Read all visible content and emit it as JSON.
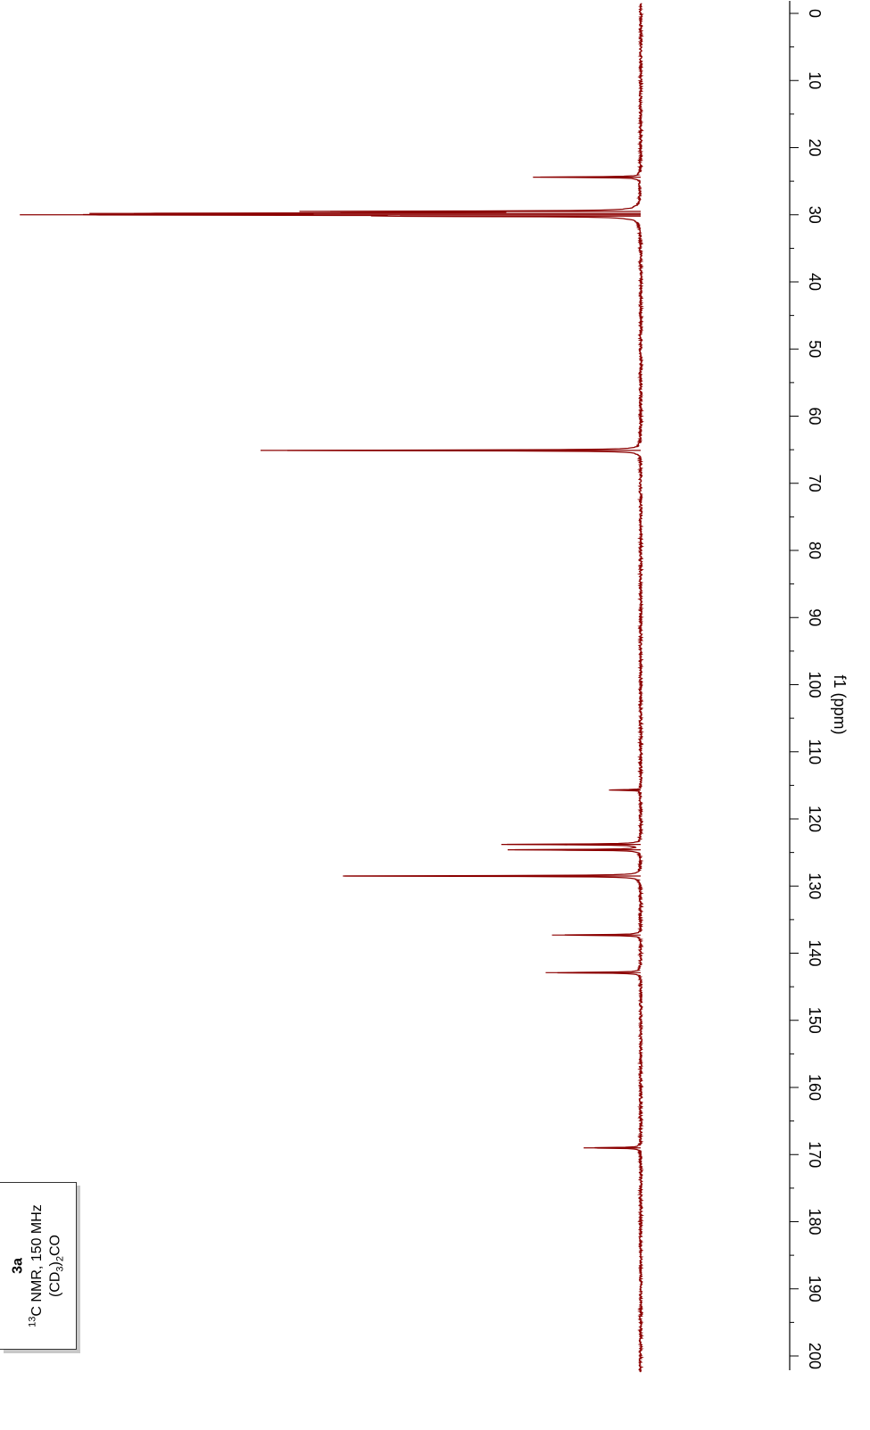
{
  "chart_data": {
    "type": "line",
    "orientation": "rotated-90",
    "xlabel": "f1 (ppm)",
    "xlim": [
      0,
      200
    ],
    "xticks": [
      0,
      10,
      20,
      30,
      40,
      50,
      60,
      70,
      80,
      90,
      100,
      110,
      120,
      130,
      140,
      150,
      160,
      170,
      180,
      190,
      200
    ],
    "minor_tick_step": 5,
    "line_color": "#8b0000",
    "baseline_intensity": 0,
    "ylim": [
      0,
      1
    ],
    "peaks": [
      {
        "ppm": 24.4,
        "intensity": 0.17
      },
      {
        "ppm": 29.5,
        "intensity": 0.49
      },
      {
        "ppm": 29.8,
        "intensity": 0.87
      },
      {
        "ppm": 30.0,
        "intensity": 0.98
      },
      {
        "ppm": 30.2,
        "intensity": 0.38
      },
      {
        "ppm": 65.1,
        "intensity": 0.6
      },
      {
        "ppm": 115.7,
        "intensity": 0.05
      },
      {
        "ppm": 123.8,
        "intensity": 0.22
      },
      {
        "ppm": 124.6,
        "intensity": 0.21
      },
      {
        "ppm": 128.5,
        "intensity": 0.47
      },
      {
        "ppm": 137.3,
        "intensity": 0.14
      },
      {
        "ppm": 142.9,
        "intensity": 0.15
      },
      {
        "ppm": 169.0,
        "intensity": 0.09
      }
    ]
  },
  "sample": {
    "compound": "3a",
    "nmr_iso": "13",
    "nmr_text": "C NMR, 150 MHz",
    "solvent_pre": "(CD",
    "solvent_sub1": "3",
    "solvent_mid": ")",
    "solvent_sub2": "2",
    "solvent_post": "CO"
  }
}
